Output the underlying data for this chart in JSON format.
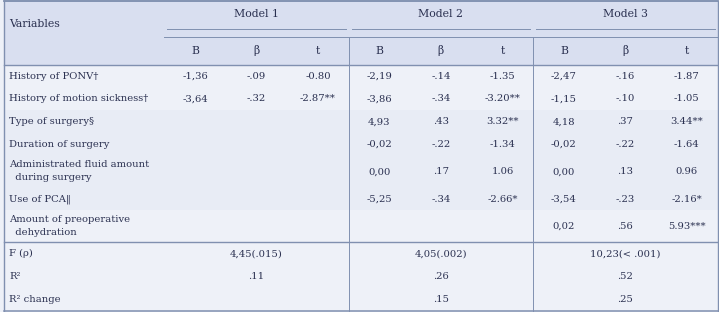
{
  "header_bg": "#d9dff0",
  "row_bg_alt": "#e8ecf5",
  "row_bg_white": "#eef1f8",
  "border_color": "#8090b0",
  "text_color": "#2a3050",
  "model_headers": [
    "Model 1",
    "Model 2",
    "Model 3"
  ],
  "col_labels": [
    "B",
    "β",
    "t",
    "B",
    "β",
    "t",
    "B",
    "β",
    "t"
  ],
  "rows": [
    {
      "var": [
        "History of PONV†"
      ],
      "m1": [
        "-1,36",
        "-.09",
        "-0.80"
      ],
      "m2": [
        "-2,19",
        "-.14",
        "-1.35"
      ],
      "m3": [
        "-2,47",
        "-.16",
        "-1.87"
      ],
      "alt": false
    },
    {
      "var": [
        "History of motion sickness†"
      ],
      "m1": [
        "-3,64",
        "-.32",
        "-2.87**"
      ],
      "m2": [
        "-3,86",
        "-.34",
        "-3.20**"
      ],
      "m3": [
        "-1,15",
        "-.10",
        "-1.05"
      ],
      "alt": false
    },
    {
      "var": [
        "Type of surgery§"
      ],
      "m1": [
        "",
        "",
        ""
      ],
      "m2": [
        "4,93",
        ".43",
        "3.32**"
      ],
      "m3": [
        "4,18",
        ".37",
        "3.44**"
      ],
      "alt": true
    },
    {
      "var": [
        "Duration of surgery"
      ],
      "m1": [
        "",
        "",
        ""
      ],
      "m2": [
        "-0,02",
        "-.22",
        "-1.34"
      ],
      "m3": [
        "-0,02",
        "-.22",
        "-1.64"
      ],
      "alt": true
    },
    {
      "var": [
        "Administrated fluid amount",
        "  during surgery"
      ],
      "m1": [
        "",
        "",
        ""
      ],
      "m2": [
        "0,00",
        ".17",
        "1.06"
      ],
      "m3": [
        "0,00",
        ".13",
        "0.96"
      ],
      "alt": true
    },
    {
      "var": [
        "Use of PCA‖"
      ],
      "m1": [
        "",
        "",
        ""
      ],
      "m2": [
        "-5,25",
        "-.34",
        "-2.66*"
      ],
      "m3": [
        "-3,54",
        "-.23",
        "-2.16*"
      ],
      "alt": true
    },
    {
      "var": [
        "Amount of preoperative",
        "  dehydration"
      ],
      "m1": [
        "",
        "",
        ""
      ],
      "m2": [
        "",
        "",
        ""
      ],
      "m3": [
        "0,02",
        ".56",
        "5.93***"
      ],
      "alt": false
    }
  ],
  "footer": [
    {
      "label": "F (ρ)",
      "m1": "4,45(.015)",
      "m2": "4,05(.002)",
      "m3": "10,23(< .001)"
    },
    {
      "label": "R²",
      "m1": ".11",
      "m2": ".26",
      "m3": ".52"
    },
    {
      "label": "R² change",
      "m1": "",
      "m2": ".15",
      "m3": ".25"
    }
  ],
  "figsize": [
    7.19,
    3.12
  ],
  "dpi": 100
}
